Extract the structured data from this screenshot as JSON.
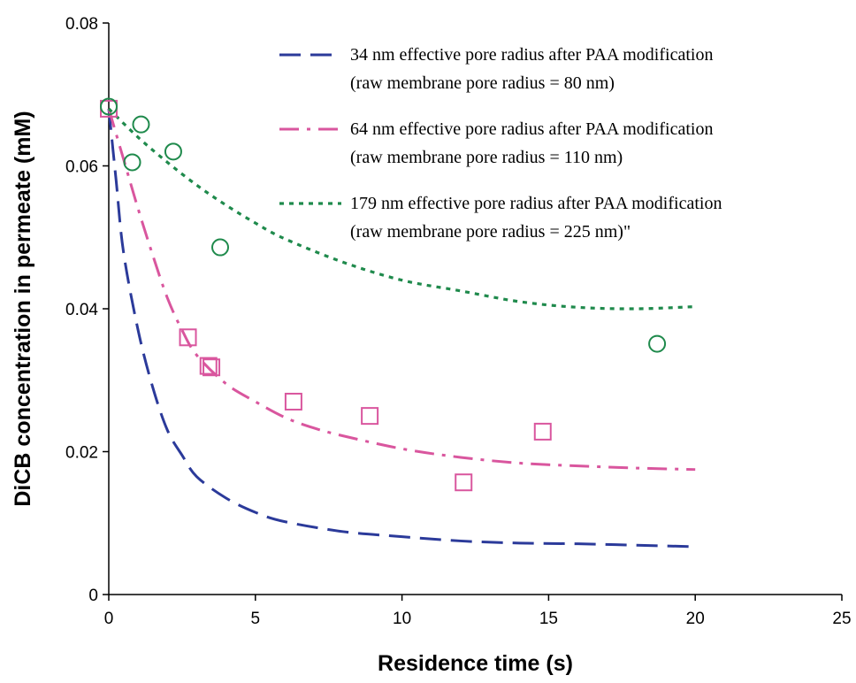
{
  "chart_data": {
    "type": "scatter",
    "xlabel": "Residence time (s)",
    "ylabel": "DiCB concentration in permeate (mM)",
    "xlim": [
      0,
      25
    ],
    "ylim": [
      0,
      0.08
    ],
    "x_ticks": [
      0,
      5,
      10,
      15,
      20,
      25
    ],
    "x_tick_labels": [
      "0",
      "5",
      "10",
      "15",
      "20",
      "25"
    ],
    "y_ticks": [
      0,
      0.02,
      0.04,
      0.06,
      0.08
    ],
    "y_tick_labels": [
      "0",
      "0.02",
      "0.04",
      "0.06",
      "0.08"
    ],
    "grid": false,
    "legend_position": "top-right",
    "series": [
      {
        "name": "34 nm effective pore radius after PAA modification",
        "subtitle": "(raw membrane pore radius = 80 nm)",
        "kind": "line",
        "dash": "long-dash",
        "color": "#2b3a9a",
        "x": [
          0,
          0.25,
          0.5,
          1,
          1.5,
          2,
          2.5,
          3,
          4,
          5,
          6,
          8,
          10,
          12,
          14,
          16,
          18,
          20
        ],
        "y": [
          0.068,
          0.058,
          0.048,
          0.037,
          0.029,
          0.023,
          0.0195,
          0.0165,
          0.0135,
          0.0115,
          0.0102,
          0.0088,
          0.0081,
          0.0075,
          0.0072,
          0.0071,
          0.0069,
          0.0067
        ]
      },
      {
        "name": "64 nm effective pore radius after PAA modification",
        "subtitle": "(raw membrane pore radius = 110 nm)",
        "kind": "line",
        "dash": "dash-dot",
        "color": "#d9569e",
        "x": [
          0,
          0.5,
          1,
          1.5,
          2,
          2.5,
          3,
          4,
          5,
          6,
          7,
          8,
          10,
          12,
          14,
          16,
          18,
          20
        ],
        "y": [
          0.068,
          0.061,
          0.054,
          0.0475,
          0.0415,
          0.037,
          0.0335,
          0.0295,
          0.027,
          0.0248,
          0.0233,
          0.0222,
          0.0204,
          0.0192,
          0.0184,
          0.018,
          0.0177,
          0.0175
        ]
      },
      {
        "name": "179 nm effective pore radius after PAA modification",
        "subtitle": "(raw membrane pore radius = 225 nm)\"",
        "kind": "line",
        "dash": "dotted",
        "color": "#1f8a4c",
        "x": [
          0,
          1,
          2,
          3,
          4,
          5,
          6,
          8,
          10,
          12,
          14,
          16,
          18,
          20
        ],
        "y": [
          0.068,
          0.064,
          0.0605,
          0.0573,
          0.0545,
          0.052,
          0.0498,
          0.0465,
          0.044,
          0.0425,
          0.041,
          0.0402,
          0.04,
          0.0403
        ]
      },
      {
        "kind": "points",
        "marker": "square",
        "color": "#d9569e",
        "x": [
          0,
          2.7,
          3.4,
          3.5,
          6.3,
          8.9,
          12.1,
          14.8
        ],
        "y": [
          0.068,
          0.036,
          0.032,
          0.0318,
          0.027,
          0.025,
          0.0157,
          0.0228
        ]
      },
      {
        "kind": "points",
        "marker": "circle",
        "color": "#1f8a4c",
        "x": [
          0,
          0.8,
          1.1,
          2.2,
          3.8,
          18.7
        ],
        "y": [
          0.0683,
          0.0605,
          0.0658,
          0.062,
          0.0486,
          0.0351
        ]
      }
    ]
  }
}
